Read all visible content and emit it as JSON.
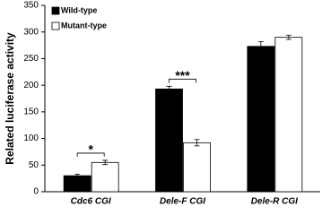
{
  "chart_data": {
    "type": "bar",
    "y_label": "Related luciferase activity",
    "categories": [
      "Cdc6 CGI",
      "Dele-F CGI",
      "Dele-R CGI"
    ],
    "series": [
      {
        "name": "Wild-type",
        "color": "#000000",
        "values": [
          30,
          193,
          273
        ],
        "errors": [
          3,
          5,
          9
        ]
      },
      {
        "name": "Mutant-type",
        "color": "#ffffff",
        "values": [
          55,
          92,
          290
        ],
        "errors": [
          4,
          6,
          4
        ]
      }
    ],
    "annotations": [
      "*",
      "***"
    ],
    "ylim": [
      0,
      350
    ],
    "yticks": [
      0,
      50,
      100,
      150,
      200,
      250,
      300,
      350
    ],
    "legend": "upper-left"
  }
}
